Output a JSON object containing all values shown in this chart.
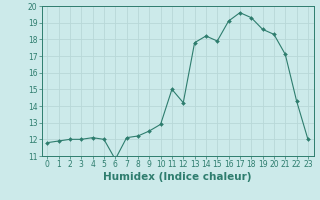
{
  "x": [
    0,
    1,
    2,
    3,
    4,
    5,
    6,
    7,
    8,
    9,
    10,
    11,
    12,
    13,
    14,
    15,
    16,
    17,
    18,
    19,
    20,
    21,
    22,
    23
  ],
  "y": [
    11.8,
    11.9,
    12.0,
    12.0,
    12.1,
    12.0,
    10.8,
    12.1,
    12.2,
    12.5,
    12.9,
    15.0,
    14.2,
    17.8,
    18.2,
    17.9,
    19.1,
    19.6,
    19.3,
    18.6,
    18.3,
    17.1,
    14.3,
    12.0
  ],
  "line_color": "#2e7d6e",
  "marker": "D",
  "marker_size": 2.0,
  "bg_color": "#cceaea",
  "grid_color": "#b8d8d8",
  "xlabel": "Humidex (Indice chaleur)",
  "ylim": [
    11,
    20
  ],
  "xlim": [
    -0.5,
    23.5
  ],
  "yticks": [
    11,
    12,
    13,
    14,
    15,
    16,
    17,
    18,
    19,
    20
  ],
  "xticks": [
    0,
    1,
    2,
    3,
    4,
    5,
    6,
    7,
    8,
    9,
    10,
    11,
    12,
    13,
    14,
    15,
    16,
    17,
    18,
    19,
    20,
    21,
    22,
    23
  ],
  "tick_color": "#2e7d6e",
  "label_color": "#2e7d6e",
  "tick_fontsize": 5.5,
  "xlabel_fontsize": 7.5
}
